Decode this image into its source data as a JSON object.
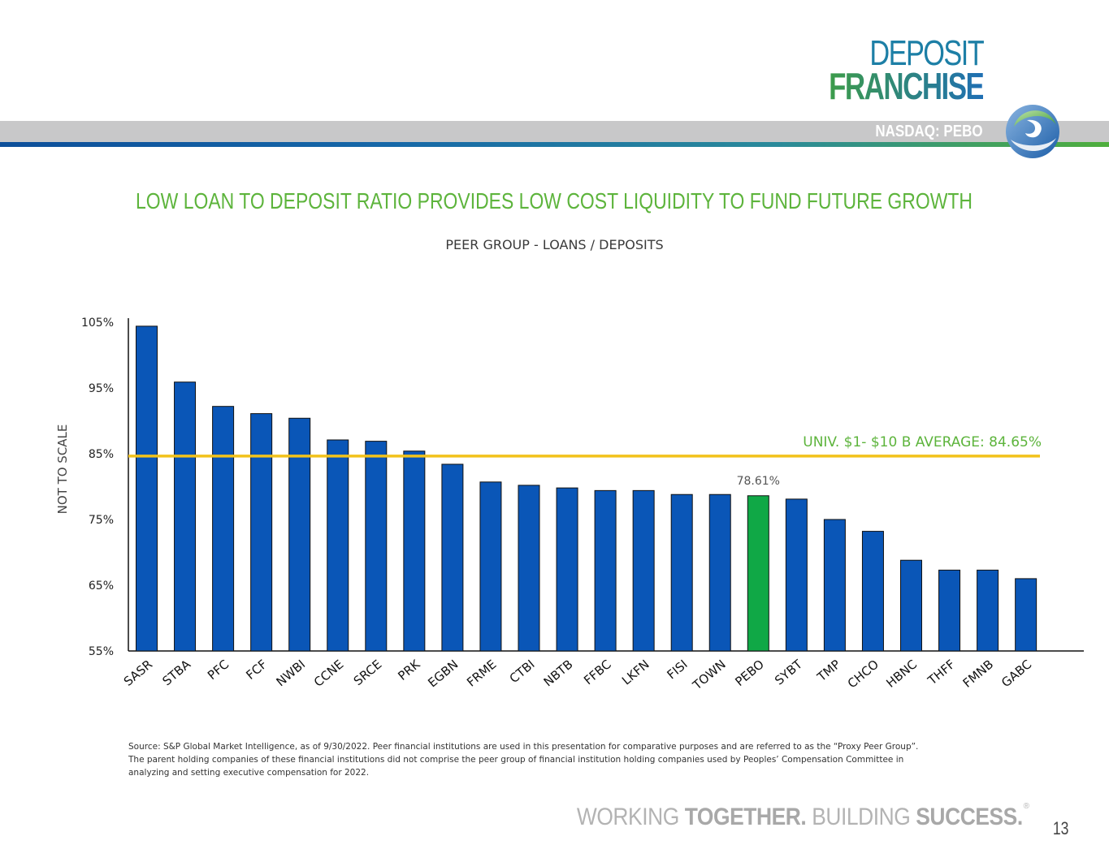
{
  "header": {
    "deposit": "DEPOSIT",
    "franchise": "FRANCHISE",
    "ticker": "NASDAQ: PEBO"
  },
  "title": "LOW LOAN TO DEPOSIT RATIO PROVIDES LOW COST LIQUIDITY TO FUND FUTURE GROWTH",
  "subtitle": "PEER GROUP  - LOANS / DEPOSITS",
  "chart_data": {
    "type": "bar",
    "ylabel": "NOT TO SCALE",
    "ylim": [
      55,
      105
    ],
    "yticks": [
      55,
      65,
      75,
      85,
      95,
      105
    ],
    "ytick_labels": [
      "55%",
      "65%",
      "75%",
      "85%",
      "95%",
      "105%"
    ],
    "categories": [
      "SASR",
      "STBA",
      "PFC",
      "FCF",
      "NWBI",
      "CCNE",
      "SRCE",
      "PRK",
      "EGBN",
      "FRME",
      "CTBI",
      "NBTB",
      "FFBC",
      "LKFN",
      "FISI",
      "TOWN",
      "PEBO",
      "SYBT",
      "TMP",
      "CHCO",
      "HBNC",
      "THFF",
      "FMNB",
      "GABC"
    ],
    "values": [
      104.4,
      95.9,
      92.2,
      91.1,
      90.4,
      87.1,
      86.9,
      85.4,
      83.4,
      80.7,
      80.2,
      79.8,
      79.4,
      79.4,
      78.8,
      78.8,
      78.61,
      78.1,
      75.0,
      73.2,
      68.8,
      67.3,
      67.3,
      66.0
    ],
    "highlight": "PEBO",
    "highlight_label": "78.61%",
    "colors": {
      "bar": "#0a56b7",
      "highlight": "#10a846",
      "average": "#f2c21b",
      "average_text": "#5db43c"
    },
    "average": {
      "value": 84.65,
      "label": "UNIV. $1- $10 B AVERAGE: 84.65%"
    }
  },
  "footnote": [
    "Source: S&P Global Market Intelligence, as of 9/30/2022.  Peer financial institutions are used in this presentation for comparative purposes and are referred to as the “Proxy Peer Group”.",
    "The parent holding companies of these financial institutions did not comprise the peer group of financial institution holding companies used by Peoples’ Compensation Committee in",
    "analyzing and setting executive compensation for 2022."
  ],
  "tagline": {
    "part1": "WORKING ",
    "part2": "TOGETHER.",
    "part3": " BUILDING ",
    "part4": "SUCCESS.",
    "reg": "®"
  },
  "page_number": "13"
}
